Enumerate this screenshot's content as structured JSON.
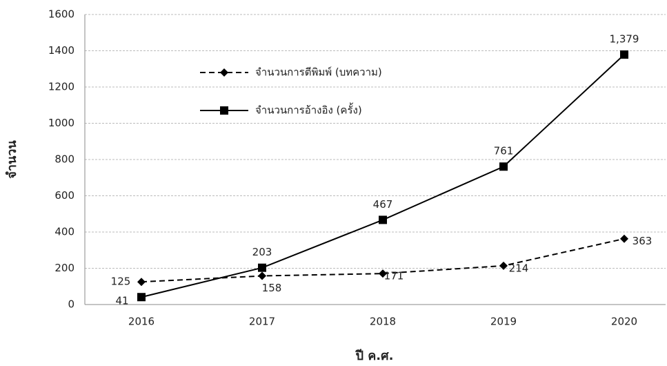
{
  "chart_data": {
    "type": "line",
    "categories": [
      "2016",
      "2017",
      "2018",
      "2019",
      "2020"
    ],
    "series": [
      {
        "name": "จำนวนการตีพิมพ์ (บทความ)",
        "color": "#000000",
        "dash": true,
        "marker": "diamond",
        "values": [
          125,
          158,
          171,
          214,
          363
        ]
      },
      {
        "name": "จำนวนการอ้างอิง (ครั้ง)",
        "color": "#000000",
        "dash": false,
        "marker": "square",
        "values": [
          41,
          203,
          467,
          761,
          1379
        ],
        "value_labels": [
          "41",
          "203",
          "467",
          "761",
          "1,379"
        ]
      }
    ],
    "ylim": [
      0,
      1600
    ],
    "yticks": [
      0,
      200,
      400,
      600,
      800,
      1000,
      1200,
      1400,
      1600
    ],
    "xlabel": "ปี ค.ศ.",
    "ylabel": "จำนวน",
    "grid": true
  }
}
